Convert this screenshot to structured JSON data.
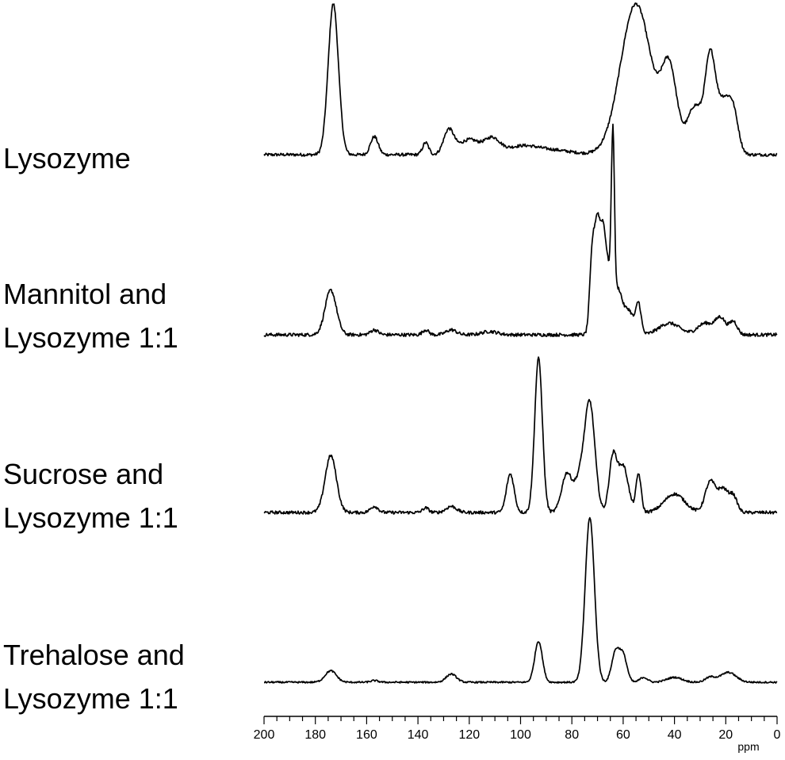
{
  "chart_data": {
    "type": "line",
    "x_unit": "ppm",
    "x_ticks": [
      200,
      180,
      160,
      140,
      120,
      100,
      80,
      60,
      40,
      20,
      0
    ],
    "xlim": [
      200,
      0
    ],
    "grid": false,
    "series": [
      {
        "name": "Lysozyme",
        "label_lines": [
          "Lysozyme"
        ],
        "baseline": 0.02,
        "peaks": [
          [
            173,
            1.0,
            2.0
          ],
          [
            157,
            0.12,
            1.5
          ],
          [
            137,
            0.08,
            1.2
          ],
          [
            128,
            0.16,
            2.0
          ],
          [
            120,
            0.1,
            4.0
          ],
          [
            111,
            0.1,
            3.0
          ],
          [
            100,
            0.05,
            6.0
          ],
          [
            88,
            0.03,
            8.0
          ],
          [
            55,
            1.0,
            6.0
          ],
          [
            42,
            0.54,
            3.0
          ],
          [
            32,
            0.32,
            3.0
          ],
          [
            26,
            0.61,
            2.0
          ],
          [
            21,
            0.33,
            2.5
          ],
          [
            17,
            0.25,
            2.0
          ]
        ]
      },
      {
        "name": "Mannitol and Lysozyme 1:1",
        "label_lines": [
          "Mannitol and",
          "Lysozyme 1:1"
        ],
        "baseline": 0.02,
        "peaks": [
          [
            174,
            0.27,
            2.2
          ],
          [
            157,
            0.03,
            1.5
          ],
          [
            137,
            0.03,
            1.2
          ],
          [
            127,
            0.03,
            2.0
          ],
          [
            112,
            0.02,
            3.0
          ],
          [
            72,
            0.5,
            1.0
          ],
          [
            70,
            0.6,
            1.0
          ],
          [
            68,
            0.45,
            1.0
          ],
          [
            66,
            0.4,
            1.5
          ],
          [
            64,
            1.0,
            0.6
          ],
          [
            62,
            0.25,
            1.5
          ],
          [
            58,
            0.15,
            2.0
          ],
          [
            54,
            0.18,
            1.0
          ],
          [
            42,
            0.07,
            4.0
          ],
          [
            28,
            0.07,
            3.0
          ],
          [
            22,
            0.1,
            2.0
          ],
          [
            17,
            0.08,
            1.5
          ]
        ]
      },
      {
        "name": "Sucrose and Lysozyme 1:1",
        "label_lines": [
          "Sucrose and",
          "Lysozyme 1:1"
        ],
        "baseline": 0.02,
        "peaks": [
          [
            174,
            0.37,
            2.2
          ],
          [
            157,
            0.04,
            1.5
          ],
          [
            137,
            0.03,
            1.2
          ],
          [
            127,
            0.04,
            2.0
          ],
          [
            104,
            0.25,
            1.5
          ],
          [
            93,
            1.0,
            1.5
          ],
          [
            82,
            0.25,
            2.0
          ],
          [
            77,
            0.2,
            2.0
          ],
          [
            73,
            0.7,
            2.0
          ],
          [
            64,
            0.35,
            1.5
          ],
          [
            60,
            0.3,
            2.0
          ],
          [
            54,
            0.25,
            1.0
          ],
          [
            40,
            0.12,
            4.0
          ],
          [
            26,
            0.2,
            2.0
          ],
          [
            21,
            0.15,
            2.0
          ],
          [
            17,
            0.1,
            1.5
          ]
        ]
      },
      {
        "name": "Trehalose and Lysozyme 1:1",
        "label_lines": [
          "Trehalose and",
          "Lysozyme 1:1"
        ],
        "baseline": 0.01,
        "peaks": [
          [
            174,
            0.07,
            2.2
          ],
          [
            157,
            0.01,
            1.5
          ],
          [
            127,
            0.05,
            2.0
          ],
          [
            93,
            0.25,
            1.5
          ],
          [
            73,
            1.0,
            1.8
          ],
          [
            63,
            0.18,
            1.5
          ],
          [
            60,
            0.16,
            1.5
          ],
          [
            52,
            0.03,
            1.5
          ],
          [
            40,
            0.03,
            3.0
          ],
          [
            26,
            0.03,
            2.0
          ],
          [
            19,
            0.06,
            3.0
          ]
        ]
      }
    ]
  }
}
